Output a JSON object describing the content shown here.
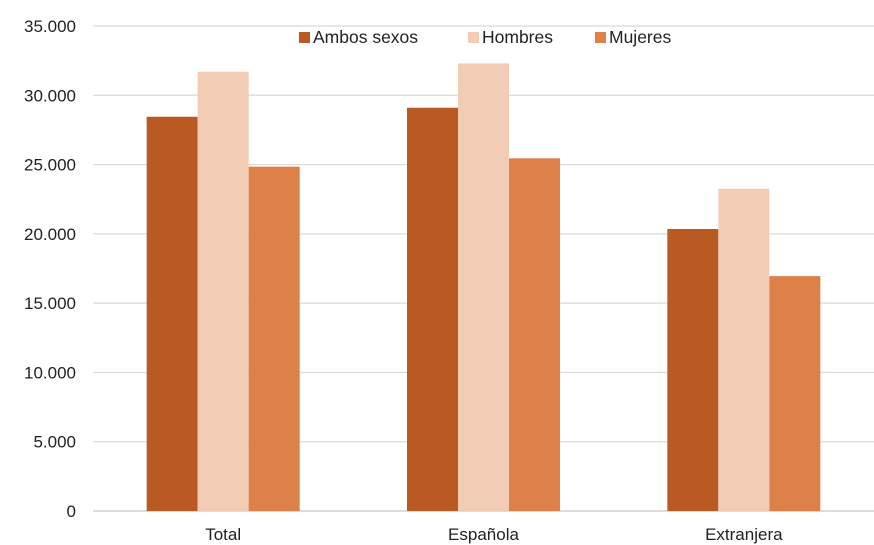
{
  "chart_data": {
    "type": "bar",
    "categories": [
      "Total",
      "Española",
      "Extranjera"
    ],
    "series": [
      {
        "name": "Ambos sexos",
        "color": "#b85a22",
        "values": [
          28450,
          29100,
          20350
        ]
      },
      {
        "name": "Hombres",
        "color": "#f2ccb5",
        "values": [
          31700,
          32300,
          23250
        ]
      },
      {
        "name": "Mujeres",
        "color": "#de8148",
        "values": [
          24850,
          25450,
          16950
        ]
      }
    ],
    "ylim": [
      0,
      35000
    ],
    "y_ticks": [
      0,
      5000,
      10000,
      15000,
      20000,
      25000,
      30000,
      35000
    ],
    "y_tick_labels": [
      "0",
      "5.000",
      "10.000",
      "15.000",
      "20.000",
      "25.000",
      "30.000",
      "35.000"
    ],
    "grid": true,
    "legend_position": "top",
    "title": "",
    "xlabel": "",
    "ylabel": ""
  }
}
